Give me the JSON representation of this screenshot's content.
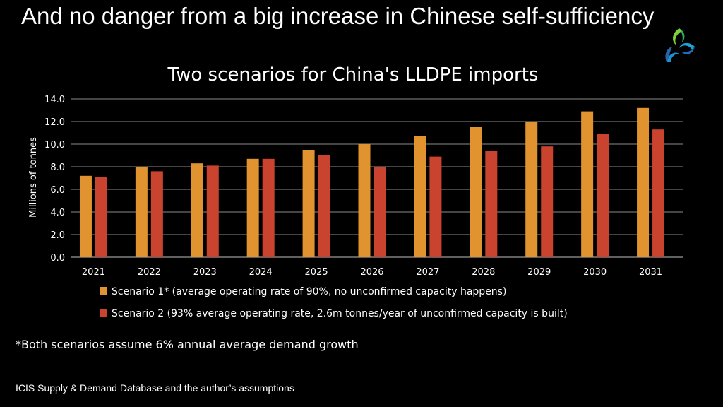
{
  "slide": {
    "title": "And no danger from a big increase in Chinese self-sufficiency",
    "footnote": "*Both scenarios assume 6% annual average demand growth",
    "source": "ICIS Supply & Demand Database and the author’s assumptions",
    "logo_icon": "icis-logo-icon"
  },
  "colors": {
    "background": "#000000",
    "scenario1": "#E0932E",
    "scenario2": "#C9432F",
    "grid": "#8a8a8a",
    "text": "#ffffff"
  },
  "chart_data": {
    "type": "bar",
    "title": "Two scenarios for China's LLDPE imports",
    "ylabel": "Millions of tonnes",
    "xlabel": "",
    "ylim": [
      0,
      14
    ],
    "yticks": [
      "0.0",
      "2.0",
      "4.0",
      "6.0",
      "8.0",
      "10.0",
      "12.0",
      "14.0"
    ],
    "grid": true,
    "legend_position": "bottom",
    "categories": [
      "2021",
      "2022",
      "2023",
      "2024",
      "2025",
      "2026",
      "2027",
      "2028",
      "2029",
      "2030",
      "2031"
    ],
    "series": [
      {
        "name": "Scenario 1* (average operating rate of 90%, no unconfirmed capacity happens)",
        "color": "#E0932E",
        "values": [
          7.2,
          8.0,
          8.3,
          8.7,
          9.5,
          10.0,
          10.7,
          11.5,
          12.0,
          12.9,
          13.2
        ]
      },
      {
        "name": "Scenario 2 (93% average operating rate, 2.6m tonnes/year of unconfirmed capacity is built)",
        "color": "#C9432F",
        "values": [
          7.1,
          7.6,
          8.1,
          8.7,
          9.0,
          8.0,
          8.9,
          9.4,
          9.8,
          10.9,
          11.3
        ]
      }
    ]
  }
}
